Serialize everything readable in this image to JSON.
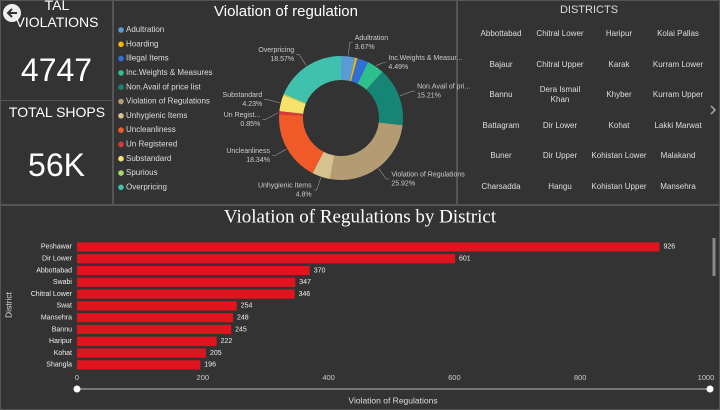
{
  "kpis": [
    {
      "label": "TAL VIOLATIONS",
      "value": 4747
    },
    {
      "label": "TOTAL SHOPS",
      "value": 56000,
      "value_label": "56K"
    }
  ],
  "districts": {
    "title": "DISTRICTS",
    "items": [
      "Abbottabad",
      "Chitral Lower",
      "Haripur",
      "Kolai Pallas",
      "Bajaur",
      "Chitral Upper",
      "Karak",
      "Kurram Lower",
      "Bannu",
      "Dera Ismail Khan",
      "Khyber",
      "Kurram Upper",
      "Battagram",
      "Dir Lower",
      "Kohat",
      "Lakki Marwat",
      "Buner",
      "Dir Upper",
      "Kohistan Lower",
      "Malakand",
      "Charsadda",
      "Hangu",
      "Kohistan Upper",
      "Mansehra"
    ]
  },
  "chart_data": [
    {
      "type": "donut",
      "title": "Violation of regulation",
      "categories": [
        "Adultration",
        "Hoarding",
        "Illegal Items",
        "Inc.Weights & Measures",
        "Non.Avail of price list",
        "Violation of Regulations",
        "Unhygienic Items",
        "Uncleanliness",
        "Un Registered",
        "Substandard",
        "Spurious",
        "Overpricing"
      ],
      "values": [
        3.67,
        0.6,
        2.9,
        4.49,
        15.21,
        25.92,
        4.8,
        18.34,
        0.85,
        4.23,
        0.42,
        18.57
      ],
      "value_labels": [
        "3.67%",
        null,
        null,
        "4.49%",
        "15.21%",
        "25.92%",
        "4.8%",
        "18.34%",
        "0.85%",
        "4.23%",
        null,
        "18.57%"
      ],
      "slice_labels": [
        "Adultration",
        null,
        null,
        "Inc.Weights & Measur...",
        "Non.Avail of pri...",
        "Violation of Regulations",
        "Unhygienic Items",
        "Uncleanliness",
        "Un Regist...",
        "Substandard",
        null,
        "Overpricing"
      ],
      "colors": [
        "#5b9bd5",
        "#f2b705",
        "#2f6fd6",
        "#2fbf8f",
        "#168575",
        "#b39b74",
        "#d6c28e",
        "#f05a28",
        "#d93a3a",
        "#f7e36b",
        "#a9d86e",
        "#3fc1ad"
      ]
    },
    {
      "type": "hbar",
      "title": "Violation of Regulations by District",
      "x_label": "Violation of Regulations",
      "y_label": "District",
      "categories": [
        "Peshawar",
        "Dir Lower",
        "Abbottabad",
        "Swabi",
        "Chitral Lower",
        "Swat",
        "Mansehra",
        "Bannu",
        "Haripur",
        "Kohat",
        "Shangla"
      ],
      "values": [
        926,
        601,
        370,
        347,
        346,
        254,
        248,
        245,
        222,
        205,
        196
      ],
      "color": "#e0141e",
      "xlim": [
        0,
        1000
      ],
      "xticks": [
        0,
        200,
        400,
        600,
        800,
        1000
      ]
    }
  ]
}
